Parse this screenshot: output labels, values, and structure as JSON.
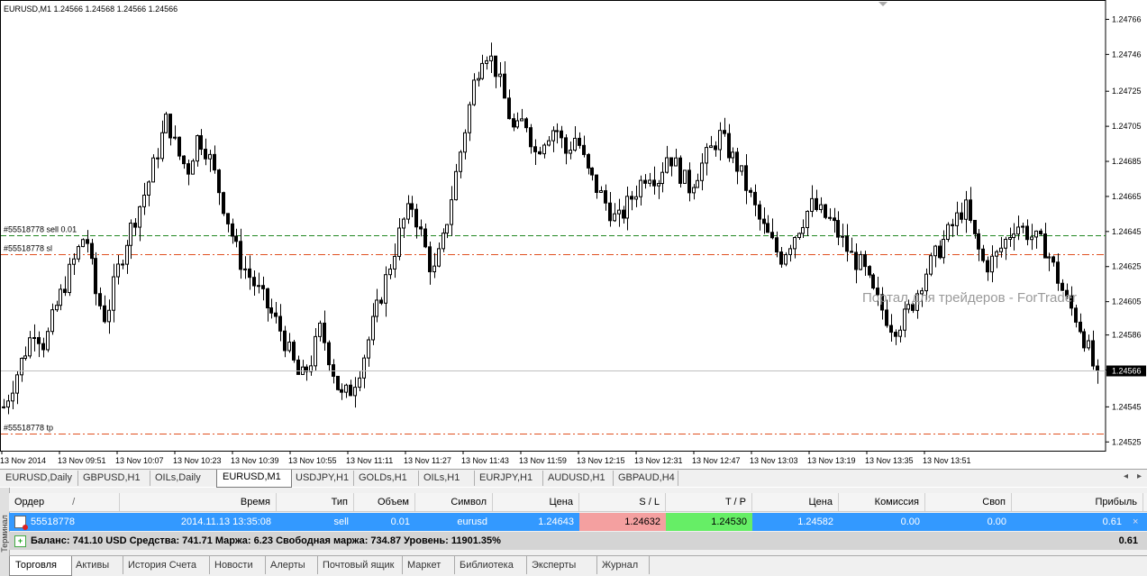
{
  "chart": {
    "header": "EURUSD,M1  1.24566 1.24568 1.24566 1.24566",
    "watermark": "Портал для трейдеров - ForTrader",
    "current_price": "1.24566",
    "price_labels": [
      "1.24766",
      "1.24746",
      "1.24725",
      "1.24705",
      "1.24685",
      "1.24665",
      "1.24645",
      "1.24625",
      "1.24605",
      "1.24586",
      "1.24566",
      "1.24545",
      "1.24525"
    ],
    "time_labels": [
      "13 Nov 2014",
      "13 Nov 09:51",
      "13 Nov 10:07",
      "13 Nov 10:23",
      "13 Nov 10:39",
      "13 Nov 10:55",
      "13 Nov 11:11",
      "13 Nov 11:27",
      "13 Nov 11:43",
      "13 Nov 11:59",
      "13 Nov 12:15",
      "13 Nov 12:31",
      "13 Nov 12:47",
      "13 Nov 13:03",
      "13 Nov 13:19",
      "13 Nov 13:35",
      "13 Nov 13:51"
    ],
    "order_lines": [
      {
        "label": "#55518778 sell 0.01",
        "price": 1.24643,
        "color": "#228822"
      },
      {
        "label": "#55518778 sl",
        "price": 1.24632,
        "color": "#e05020"
      },
      {
        "label": "#55518778 tp",
        "price": 1.2453,
        "color": "#e05020"
      }
    ],
    "colors": {
      "bull": "#ffffff",
      "bear": "#000000",
      "wick": "#000000",
      "axis": "#000000",
      "bid_line": "#c0c0c0"
    }
  },
  "symbol_tabs": [
    "EURUSD,Daily",
    "GBPUSD,H1",
    "OILs,Daily",
    "EURUSD,M1",
    "USDJPY,H1",
    "GOLDs,H1",
    "OILs,H1",
    "EURJPY,H1",
    "AUDUSD,H1",
    "GBPAUD,H4"
  ],
  "active_symbol_tab": "EURUSD,M1",
  "terminal": {
    "side_label": "Терминал",
    "headers": {
      "order": "Ордер",
      "time": "Время",
      "type": "Тип",
      "volume": "Объем",
      "symbol": "Символ",
      "price": "Цена",
      "sl": "S / L",
      "tp": "T / P",
      "cur_price": "Цена",
      "commission": "Комиссия",
      "swap": "Своп",
      "profit": "Прибыль"
    },
    "sort_indicator": "/",
    "order": {
      "id": "55518778",
      "time": "2014.11.13 13:35:08",
      "type": "sell",
      "volume": "0.01",
      "symbol": "eurusd",
      "price": "1.24643",
      "sl": "1.24632",
      "tp": "1.24530",
      "cur_price": "1.24582",
      "commission": "0.00",
      "swap": "0.00",
      "profit": "0.61",
      "close": "×"
    },
    "balance": {
      "text": "Баланс: 741.10 USD  Средства: 741.71  Маржа: 6.23  Свободная маржа: 734.87  Уровень: 11901.35%",
      "profit": "0.61"
    },
    "tabs": [
      "Торговля",
      "Активы",
      "История Счета",
      "Новости",
      "Алерты",
      "Почтовый ящик",
      "Маркет",
      "Библиотека",
      "Эксперты",
      "Журнал"
    ],
    "active_tab": "Торговля"
  },
  "chart_data": {
    "type": "candlestick",
    "symbol": "EURUSD",
    "timeframe": "M1",
    "ylim": [
      1.2452,
      1.24776
    ],
    "x_range": [
      "13 Nov 2014 09:35",
      "13 Nov 13:54"
    ],
    "close_series": [
      1.24545,
      1.2456,
      1.24575,
      1.2459,
      1.2458,
      1.246,
      1.24615,
      1.2463,
      1.24645,
      1.2461,
      1.24595,
      1.2462,
      1.2464,
      1.24655,
      1.2467,
      1.2469,
      1.2471,
      1.2469,
      1.2468,
      1.247,
      1.2469,
      1.2467,
      1.2465,
      1.2463,
      1.2462,
      1.2461,
      1.246,
      1.2459,
      1.24575,
      1.2456,
      1.2457,
      1.2459,
      1.2457,
      1.2455,
      1.24555,
      1.2457,
      1.2459,
      1.2461,
      1.2463,
      1.2465,
      1.2466,
      1.2464,
      1.2462,
      1.2464,
      1.2467,
      1.247,
      1.2473,
      1.2475,
      1.2474,
      1.2472,
      1.247,
      1.2471,
      1.2469,
      1.247,
      1.24705,
      1.2469,
      1.247,
      1.2468,
      1.2467,
      1.2466,
      1.2465,
      1.2466,
      1.2467,
      1.2468,
      1.24675,
      1.2469,
      1.2468,
      1.2467,
      1.2468,
      1.2469,
      1.247,
      1.2469,
      1.2468,
      1.24665,
      1.2465,
      1.2464,
      1.2463,
      1.2464,
      1.2465,
      1.2466,
      1.24655,
      1.2465,
      1.2464,
      1.2463,
      1.24625,
      1.2461,
      1.246,
      1.2459,
      1.24595,
      1.24605,
      1.2462,
      1.2463,
      1.2464,
      1.2465,
      1.2466,
      1.2464,
      1.24625,
      1.2463,
      1.2464,
      1.2465,
      1.24645,
      1.2464,
      1.24635,
      1.2462,
      1.24605,
      1.24595,
      1.2458,
      1.2456
    ],
    "order_levels": {
      "open": 1.24643,
      "sl": 1.24632,
      "tp": 1.2453
    }
  }
}
